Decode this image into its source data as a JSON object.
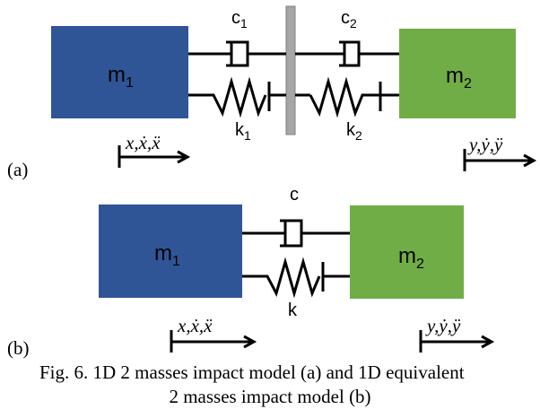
{
  "colors": {
    "mass1": "#2f5597",
    "mass2": "#70ad47",
    "wall": "#a6a6a6",
    "line": "#000000"
  },
  "diagram_a": {
    "label": "(a)",
    "mass1_label": "m",
    "mass1_sub": "1",
    "mass2_label": "m",
    "mass2_sub": "2",
    "damper1_label": "c",
    "damper1_sub": "1",
    "damper2_label": "c",
    "damper2_sub": "2",
    "spring1_label": "k",
    "spring1_sub": "1",
    "spring2_label": "k",
    "spring2_sub": "2",
    "disp_left": "x,ẋ,ẍ",
    "disp_right": "y,ẏ,ÿ"
  },
  "diagram_b": {
    "label": "(b)",
    "mass1_label": "m",
    "mass1_sub": "1",
    "mass2_label": "m",
    "mass2_sub": "2",
    "damper_label": "c",
    "spring_label": "k",
    "disp_left": "x,ẋ,ẍ",
    "disp_right": "y,ẏ,ÿ"
  },
  "caption": {
    "line1": "Fig. 6. 1D 2 masses impact model (a) and 1D equivalent",
    "line2": "2 masses impact model (b)"
  }
}
